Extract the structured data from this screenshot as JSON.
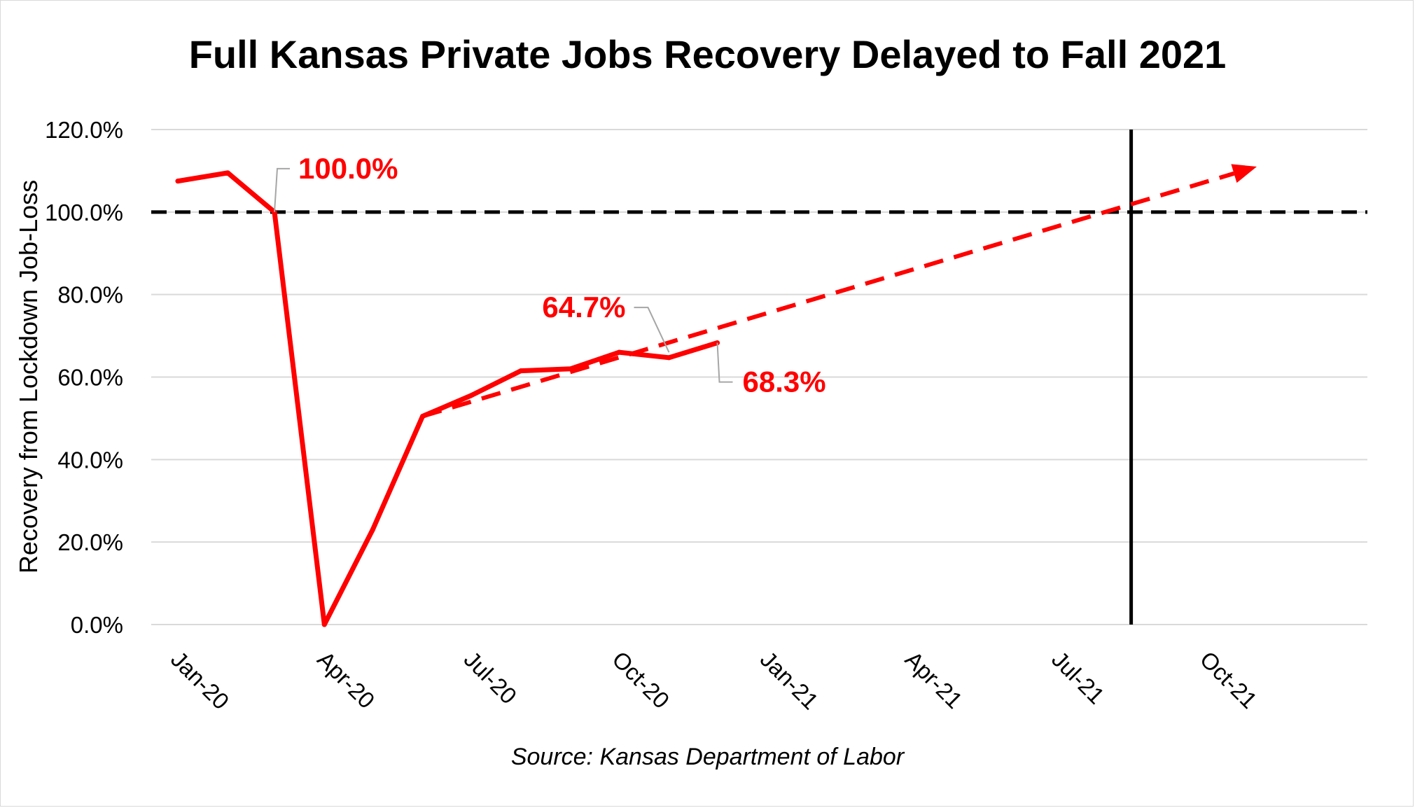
{
  "chart_data": {
    "type": "line",
    "title": "Full Kansas Private Jobs Recovery Delayed to Fall 2021",
    "source": "Source: Kansas Department of Labor",
    "ylabel": "Recovery from Lockdown Job-Loss",
    "xlabel": "",
    "ylim": [
      0,
      120
    ],
    "yticks": [
      {
        "value": 0,
        "label": "0.0%"
      },
      {
        "value": 20,
        "label": "20.0%"
      },
      {
        "value": 40,
        "label": "40.0%"
      },
      {
        "value": 60,
        "label": "60.0%"
      },
      {
        "value": 80,
        "label": "80.0%"
      },
      {
        "value": 100,
        "label": "100.0%"
      },
      {
        "value": 120,
        "label": "120.0%"
      }
    ],
    "xlim": [
      "2020-01-01",
      "2021-12-31"
    ],
    "xticks": [
      {
        "date": "2020-01-01",
        "label": "Jan-20"
      },
      {
        "date": "2020-04-01",
        "label": "Apr-20"
      },
      {
        "date": "2020-07-01",
        "label": "Jul-20"
      },
      {
        "date": "2020-10-01",
        "label": "Oct-20"
      },
      {
        "date": "2021-01-01",
        "label": "Jan-21"
      },
      {
        "date": "2021-04-01",
        "label": "Apr-21"
      },
      {
        "date": "2021-07-01",
        "label": "Jul-21"
      },
      {
        "date": "2021-10-01",
        "label": "Oct-21"
      }
    ],
    "grid": true,
    "series": [
      {
        "color": "#ff0000",
        "points": [
          {
            "x": "2020-01-01",
            "y": 107.5
          },
          {
            "x": "2020-02-01",
            "y": 109.5
          },
          {
            "x": "2020-03-01",
            "y": 100.0
          },
          {
            "x": "2020-04-01",
            "y": 0.0
          },
          {
            "x": "2020-05-01",
            "y": 23.0
          },
          {
            "x": "2020-06-01",
            "y": 50.5
          },
          {
            "x": "2020-07-01",
            "y": 55.5
          },
          {
            "x": "2020-08-01",
            "y": 61.5
          },
          {
            "x": "2020-09-01",
            "y": 62.0
          },
          {
            "x": "2020-10-01",
            "y": 66.0
          },
          {
            "x": "2020-11-01",
            "y": 64.7
          },
          {
            "x": "2020-12-01",
            "y": 68.3
          }
        ]
      },
      {
        "color": "#ff0000",
        "style": "dashed",
        "arrow": true,
        "points": [
          {
            "x": "2020-06-01",
            "y": 50.5
          },
          {
            "x": "2021-11-01",
            "y": 111.0
          }
        ]
      }
    ],
    "reference_lines": [
      {
        "orientation": "horizontal",
        "y": 100,
        "color": "#000000",
        "style": "dashed"
      },
      {
        "orientation": "vertical",
        "x": "2021-08-15",
        "color": "#000000",
        "style": "solid"
      }
    ],
    "annotations": [
      {
        "text": "100.0%",
        "x": "2020-03-01",
        "y": 100.0,
        "color": "#ff0000",
        "position": "upper-right"
      },
      {
        "text": "64.7%",
        "x": "2020-11-01",
        "y": 66.0,
        "color": "#ff0000",
        "position": "upper-left"
      },
      {
        "text": "68.3%",
        "x": "2020-12-01",
        "y": 68.3,
        "color": "#ff0000",
        "position": "lower-right"
      }
    ]
  }
}
